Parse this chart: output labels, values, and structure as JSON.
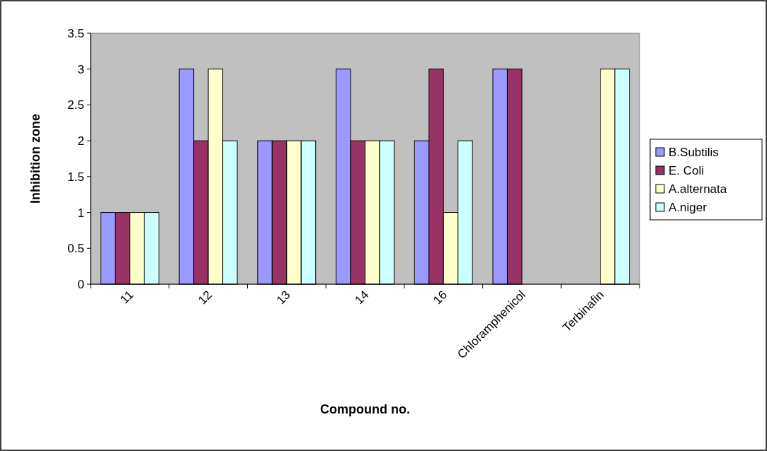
{
  "chart_data": {
    "type": "bar",
    "xlabel": "Compound no.",
    "ylabel": "Inhibition zone",
    "categories": [
      "11",
      "12",
      "13",
      "14",
      "16",
      "Chloramphenicol",
      "Terbinafin"
    ],
    "series": [
      {
        "name": "B.Subtilis",
        "color": "#9999ff",
        "values": [
          1,
          3,
          2,
          3,
          2,
          3,
          null
        ]
      },
      {
        "name": "E. Coli",
        "color": "#993366",
        "values": [
          1,
          2,
          2,
          2,
          3,
          3,
          null
        ]
      },
      {
        "name": "A.alternata",
        "color": "#ffffcc",
        "values": [
          1,
          3,
          2,
          2,
          1,
          null,
          3
        ]
      },
      {
        "name": "A.niger",
        "color": "#ccffff",
        "values": [
          1,
          2,
          2,
          2,
          2,
          null,
          3
        ]
      }
    ],
    "ylim": [
      0,
      3.5
    ],
    "yticks": [
      0,
      0.5,
      1,
      1.5,
      2,
      2.5,
      3,
      3.5
    ],
    "grid": false,
    "legend": "right"
  }
}
